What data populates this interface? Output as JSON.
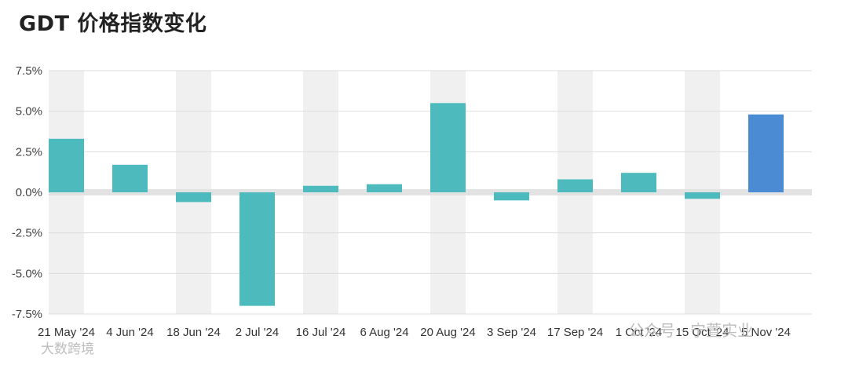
{
  "title": "GDT 价格指数变化",
  "colors": {
    "bar": "#4dbbbd",
    "highlight": "#4a8bd4",
    "stripe": "#f0f0f0",
    "zero_band": "#e2e2e2",
    "gridline": "#dddddd"
  },
  "watermarks": {
    "left": "大数跨境",
    "right": "公众号 · 宁萱实业"
  },
  "chart_data": {
    "type": "bar",
    "title": "GDT 价格指数变化",
    "xlabel": "",
    "ylabel": "",
    "ylim": [
      -7.5,
      7.5
    ],
    "yticks": [
      7.5,
      5.0,
      2.5,
      0.0,
      -2.5,
      -5.0,
      -7.5
    ],
    "ytick_labels": [
      "7.5%",
      "5.0%",
      "2.5%",
      "0.0%",
      "-2.5%",
      "-5.0%",
      "-7.5%"
    ],
    "grid": true,
    "legend": "none",
    "categories": [
      "21 May '24",
      "4 Jun '24",
      "18 Jun '24",
      "2 Jul '24",
      "16 Jul '24",
      "6 Aug '24",
      "20 Aug '24",
      "3 Sep '24",
      "17 Sep '24",
      "1 Oct '24",
      "15 Oct '24",
      "5 Nov '24"
    ],
    "values": [
      3.3,
      1.7,
      -0.6,
      -7.0,
      0.4,
      0.5,
      5.5,
      -0.5,
      0.8,
      1.2,
      -0.4,
      4.8
    ],
    "highlight_index": 11
  }
}
